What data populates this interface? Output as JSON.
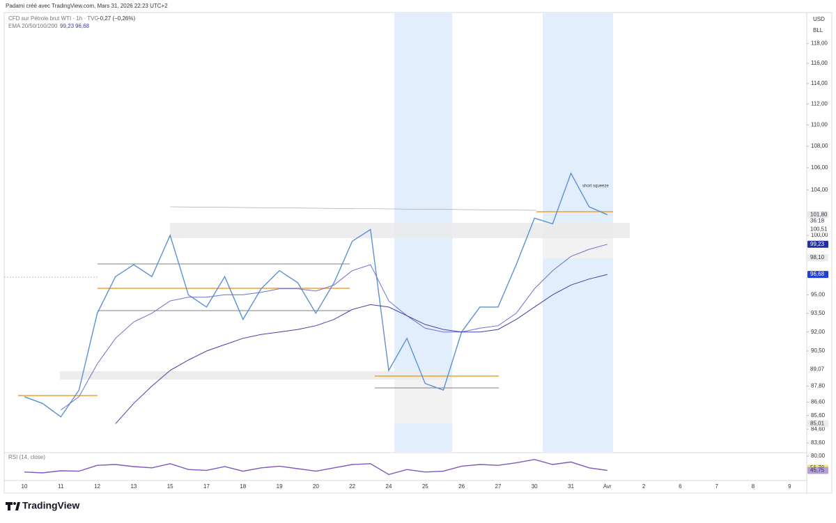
{
  "header": {
    "credit": "Padami créé avec TradingView.com, Mars 31, 2026 22:23 UTC+2",
    "symbol": "CFD sur Pétrole brut WTI · 1h · TVC",
    "change": "−0,27 (−0,26%)",
    "ema_label": "EMA 20/50/100/200",
    "ema_values": [
      "99,23",
      "96,68"
    ],
    "currency": "USD",
    "unit": "BLL"
  },
  "chart_data": [
    {
      "type": "line",
      "log_scale": true,
      "categories": [
        "10",
        null,
        "11",
        null,
        "12",
        null,
        "13",
        null,
        "15",
        null,
        "17",
        null,
        "18",
        null,
        "19",
        null,
        "20",
        null,
        "22",
        null,
        "24",
        null,
        "25",
        null,
        "26",
        null,
        "27",
        null,
        "30",
        null,
        "31",
        null,
        "Avr",
        null,
        "2",
        null,
        "6",
        null,
        "7",
        null,
        "8",
        null,
        "9",
        null
      ],
      "series": [
        {
          "name": "CFD sur Pétrole brut WTI",
          "color": "#5b8fd6",
          "values": [
            87.0,
            86.5,
            85.5,
            87.5,
            93.5,
            96.5,
            97.5,
            96.5,
            100.0,
            95.0,
            94.0,
            96.5,
            93.0,
            95.5,
            97.0,
            96.0,
            93.5,
            96.0,
            99.5,
            100.5,
            89.0,
            91.5,
            88.0,
            87.5,
            92.0,
            94.0,
            94.0,
            97.5,
            101.5,
            101.0,
            105.5,
            102.5,
            101.8,
            null,
            null,
            null,
            null,
            null,
            null,
            null,
            null,
            null,
            null,
            null
          ]
        },
        {
          "name": "EMA 20/50",
          "color": "#6a6fd1",
          "values": [
            null,
            null,
            86.0,
            87.0,
            89.5,
            91.5,
            92.8,
            93.5,
            94.5,
            94.8,
            94.8,
            95.0,
            95.0,
            95.2,
            95.5,
            95.5,
            95.3,
            95.8,
            97.0,
            97.5,
            94.5,
            93.3,
            92.3,
            92.0,
            92.0,
            92.3,
            92.5,
            93.5,
            95.5,
            97.0,
            98.2,
            98.8,
            99.23,
            null,
            null,
            null,
            null,
            null,
            null,
            null,
            null,
            null,
            null,
            null
          ]
        },
        {
          "name": "EMA 100/200",
          "color": "#3f3fa8",
          "values": [
            null,
            null,
            null,
            null,
            null,
            85.0,
            86.5,
            87.8,
            89.0,
            89.8,
            90.5,
            91.0,
            91.5,
            91.8,
            92.0,
            92.2,
            92.5,
            93.0,
            93.8,
            94.2,
            94.0,
            93.3,
            92.6,
            92.2,
            92.0,
            92.0,
            92.2,
            93.0,
            94.0,
            95.0,
            95.8,
            96.3,
            96.68,
            null,
            null,
            null,
            null,
            null,
            null,
            null,
            null,
            null,
            null,
            null
          ]
        }
      ],
      "ylim": [
        82.9,
        121.2
      ],
      "yticks": [
        {
          "value": 118,
          "label": "118,00"
        },
        {
          "value": 116,
          "label": "116,00"
        },
        {
          "value": 114,
          "label": "114,00"
        },
        {
          "value": 112,
          "label": "112,00"
        },
        {
          "value": 110,
          "label": "110,00"
        },
        {
          "value": 108,
          "label": "108,00"
        },
        {
          "value": 106,
          "label": "106,00"
        },
        {
          "value": 104,
          "label": "104,00"
        },
        {
          "value": 100,
          "label": "100,00"
        },
        {
          "value": 95,
          "label": "95,00"
        },
        {
          "value": 93.5,
          "label": "93,50"
        },
        {
          "value": 92,
          "label": "92,00"
        },
        {
          "value": 90.5,
          "label": "90,50"
        },
        {
          "value": 87.8,
          "label": "87,80"
        },
        {
          "value": 86.6,
          "label": "86,60"
        },
        {
          "value": 85.6,
          "label": "85,60"
        },
        {
          "value": 84.6,
          "label": "84,60"
        },
        {
          "value": 83.6,
          "label": "83,60"
        }
      ],
      "price_labels": [
        {
          "value": 101.8,
          "label": "101,80",
          "color": "#e8e8ec"
        },
        {
          "value": 100.51,
          "label": "100,51",
          "color": "#ffffff"
        },
        {
          "value": 99.23,
          "label": "99,23",
          "color": "#1e2fa8"
        },
        {
          "value": 98.1,
          "label": "98,10",
          "color": "#ececec"
        },
        {
          "value": 96.68,
          "label": "96,68",
          "color": "#1f3fd6"
        },
        {
          "value": 89.07,
          "label": "89,07",
          "color": "#ffffff"
        },
        {
          "value": 85.01,
          "label": "85,01",
          "color": "#ececec"
        }
      ],
      "countdown": "36:18",
      "annotation": "short squeeze"
    },
    {
      "type": "line",
      "title": "RSI (14, close)",
      "series": [
        {
          "name": "RSI",
          "color": "#7e57c2",
          "values": [
            42,
            40,
            45,
            44,
            58,
            60,
            55,
            52,
            62,
            48,
            46,
            55,
            44,
            52,
            56,
            50,
            44,
            52,
            60,
            62,
            36,
            48,
            42,
            44,
            56,
            60,
            58,
            64,
            72,
            60,
            66,
            52,
            45.75
          ]
        }
      ],
      "ylim": [
        25,
        85
      ],
      "yticks": [
        {
          "value": 80,
          "label": "80,00"
        }
      ],
      "price_labels": [
        {
          "value": 51.7,
          "label": "51,70",
          "color": "#f2f26b"
        },
        {
          "value": 45.75,
          "label": "45,75",
          "color": "#b39ddb"
        }
      ]
    }
  ],
  "footer": {
    "brand": "TradingView"
  }
}
